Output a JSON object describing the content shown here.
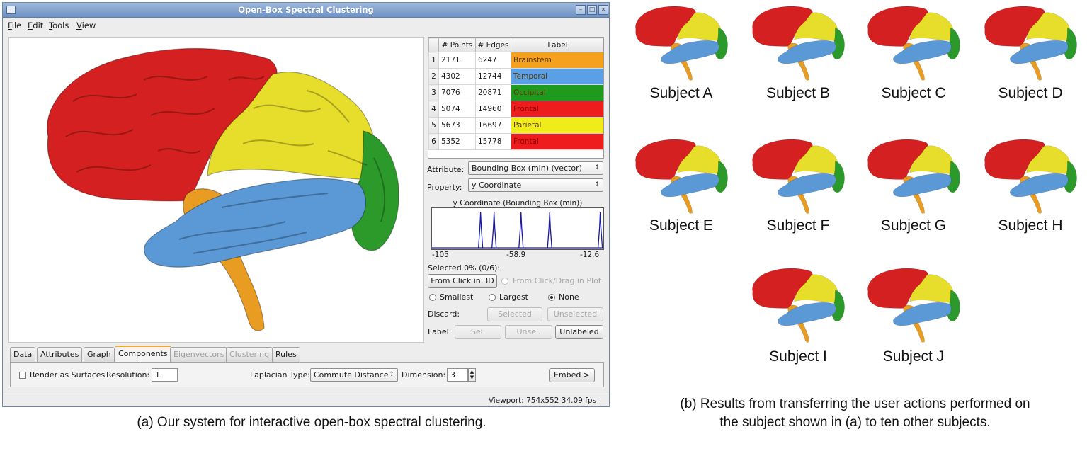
{
  "window": {
    "title": "Open-Box Spectral Clustering",
    "menu": [
      "File",
      "Edit",
      "Tools",
      "View"
    ],
    "minimize_glyph": "–",
    "maximize_glyph": "□",
    "close_glyph": "×"
  },
  "components_table": {
    "headers": [
      "# Points",
      "# Edges",
      "Label"
    ],
    "rows": [
      {
        "index": "1",
        "points": "2171",
        "edges": "6247",
        "label": "Brainstem",
        "color": "#f4a21d"
      },
      {
        "index": "2",
        "points": "4302",
        "edges": "12744",
        "label": "Temporal",
        "color": "#5b9fe6"
      },
      {
        "index": "3",
        "points": "7076",
        "edges": "20871",
        "label": "Occipital",
        "color": "#1f9a1f"
      },
      {
        "index": "4",
        "points": "5074",
        "edges": "14960",
        "label": "Frontal",
        "color": "#ee1c1c"
      },
      {
        "index": "5",
        "points": "5673",
        "edges": "16697",
        "label": "Parietal",
        "color": "#f0ec1c"
      },
      {
        "index": "6",
        "points": "5352",
        "edges": "15778",
        "label": "Frontal",
        "color": "#ee1c1c"
      }
    ]
  },
  "controls": {
    "attribute_label": "Attribute:",
    "attribute_value": "Bounding Box (min) (vector)",
    "property_label": "Property:",
    "property_value": "y Coordinate",
    "combo_arrow": "↕",
    "plot_title": "y Coordinate (Bounding Box (min))",
    "plot_ticks": [
      "-105",
      "-58.9",
      "-12.6"
    ],
    "plot_peaks": [
      0.28,
      0.36,
      0.52,
      0.69,
      0.99
    ],
    "selected_text": "Selected 0% (0/6):",
    "from_click_3d": "From Click in 3D",
    "from_click_plot": "From Click/Drag in Plot",
    "smallest": "Smallest",
    "largest": "Largest",
    "none": "None",
    "discard_label": "Discard:",
    "selected_btn": "Selected",
    "unselected_btn": "Unselected",
    "label_label": "Label:",
    "sel_btn": "Sel.",
    "unsel_btn": "Unsel.",
    "unlabeled_btn": "Unlabeled"
  },
  "tabs": [
    "Data",
    "Attributes",
    "Graph",
    "Components",
    "Eigenvectors",
    "Clustering",
    "Rules"
  ],
  "tab_panel": {
    "render_as_surfaces": "Render as Surfaces",
    "resolution_label": "Resolution:",
    "resolution_value": "1",
    "laplacian_label": "Laplacian Type:",
    "laplacian_value": "Commute Distance",
    "dimension_label": "Dimension:",
    "dimension_value": "3",
    "embed_button": "Embed >",
    "spin_up": "▲",
    "spin_down": "▼"
  },
  "status": "Viewport: 754x552  34.09 fps",
  "captions": {
    "a": "(a) Our system for interactive open-box spectral clustering.",
    "b_line1": "(b) Results from transferring the user actions performed on",
    "b_line2": "the subject shown in (a) to ten other subjects."
  },
  "subjects": [
    "Subject A",
    "Subject B",
    "Subject C",
    "Subject D",
    "Subject E",
    "Subject F",
    "Subject G",
    "Subject H",
    "Subject I",
    "Subject J"
  ],
  "region_colors": {
    "frontal": "#d42020",
    "parietal": "#e6de2a",
    "temporal": "#5a98d6",
    "occipital": "#2b9a2b",
    "brainstem": "#e89c22"
  }
}
